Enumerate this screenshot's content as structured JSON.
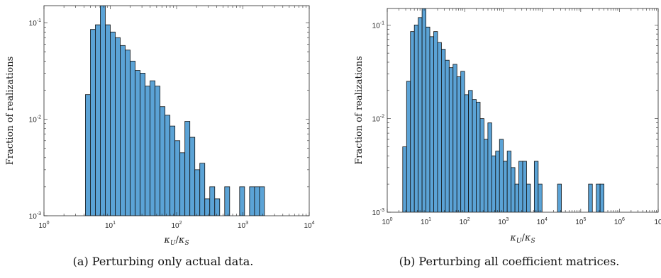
{
  "chart_data": [
    {
      "type": "bar",
      "panel": "a",
      "caption": "(a) Perturbing only actual data.",
      "xlabel": "κU/κS",
      "ylabel": "Fraction of realizations",
      "xscale": "log",
      "yscale": "log",
      "xlim": [
        1,
        10000
      ],
      "ylim": [
        0.001,
        0.15
      ],
      "xtick_labels": [
        "10^0",
        "10^1",
        "10^2",
        "10^3",
        "10^4"
      ],
      "ytick_labels": [
        "10^-3",
        "10^-2",
        "10^-1"
      ],
      "grid": false,
      "bar_color": "#5ba3d6",
      "bin_edges_log10": [
        0.625,
        0.7,
        0.775,
        0.85,
        0.925,
        1.0,
        1.075,
        1.15,
        1.225,
        1.3,
        1.375,
        1.45,
        1.525,
        1.6,
        1.675,
        1.75,
        1.825,
        1.9,
        1.975,
        2.05,
        2.125,
        2.2,
        2.275,
        2.35,
        2.425,
        2.5,
        2.575,
        2.65,
        2.725,
        2.8,
        2.875,
        2.95,
        3.025,
        3.1,
        3.175,
        3.25,
        3.325
      ],
      "values": [
        0.018,
        0.085,
        0.095,
        0.15,
        0.095,
        0.08,
        0.07,
        0.058,
        0.052,
        0.04,
        0.032,
        0.03,
        0.022,
        0.025,
        0.022,
        0.0135,
        0.011,
        0.0085,
        0.006,
        0.0045,
        0.0095,
        0.0065,
        0.003,
        0.0035,
        0.0015,
        0.002,
        0.0015,
        0,
        0.002,
        0,
        0,
        0.002,
        0,
        0.002,
        0.002,
        0.002
      ]
    },
    {
      "type": "bar",
      "panel": "b",
      "caption": "(b) Perturbing all coefficient matrices.",
      "xlabel": "κU/κS",
      "ylabel": "Fraction of realizations",
      "xscale": "log",
      "yscale": "log",
      "xlim": [
        1,
        10000000
      ],
      "ylim": [
        0.001,
        0.15
      ],
      "xtick_labels": [
        "10^0",
        "10^1",
        "10^2",
        "10^3",
        "10^4",
        "10^5",
        "10^6",
        "10"
      ],
      "ytick_labels": [
        "10^-3",
        "10^-2",
        "10^-1"
      ],
      "grid": false,
      "bar_color": "#5ba3d6",
      "bin_edges_log10": [
        0.4,
        0.5,
        0.6,
        0.7,
        0.8,
        0.9,
        1.0,
        1.1,
        1.2,
        1.3,
        1.4,
        1.5,
        1.6,
        1.7,
        1.8,
        1.9,
        2.0,
        2.1,
        2.2,
        2.3,
        2.4,
        2.5,
        2.6,
        2.7,
        2.8,
        2.9,
        3.0,
        3.1,
        3.2,
        3.3,
        3.4,
        3.5,
        3.6,
        3.7,
        3.8,
        3.9,
        4.0,
        4.1,
        4.2,
        4.3,
        4.4,
        4.5,
        4.6,
        4.7,
        4.8,
        4.9,
        5.0,
        5.1,
        5.2,
        5.3,
        5.4,
        5.5,
        5.6
      ],
      "values": [
        0.005,
        0.025,
        0.085,
        0.1,
        0.12,
        0.15,
        0.095,
        0.075,
        0.085,
        0.065,
        0.055,
        0.042,
        0.035,
        0.038,
        0.028,
        0.032,
        0.018,
        0.02,
        0.016,
        0.015,
        0.01,
        0.006,
        0.009,
        0.004,
        0.0045,
        0.006,
        0.0035,
        0.0045,
        0.003,
        0.002,
        0.0035,
        0.0035,
        0.002,
        0.001,
        0.0035,
        0.002,
        0.0005,
        0,
        0,
        0,
        0.002,
        0,
        0,
        0,
        0,
        0,
        0,
        0,
        0.002,
        0,
        0.002,
        0.002
      ]
    }
  ]
}
